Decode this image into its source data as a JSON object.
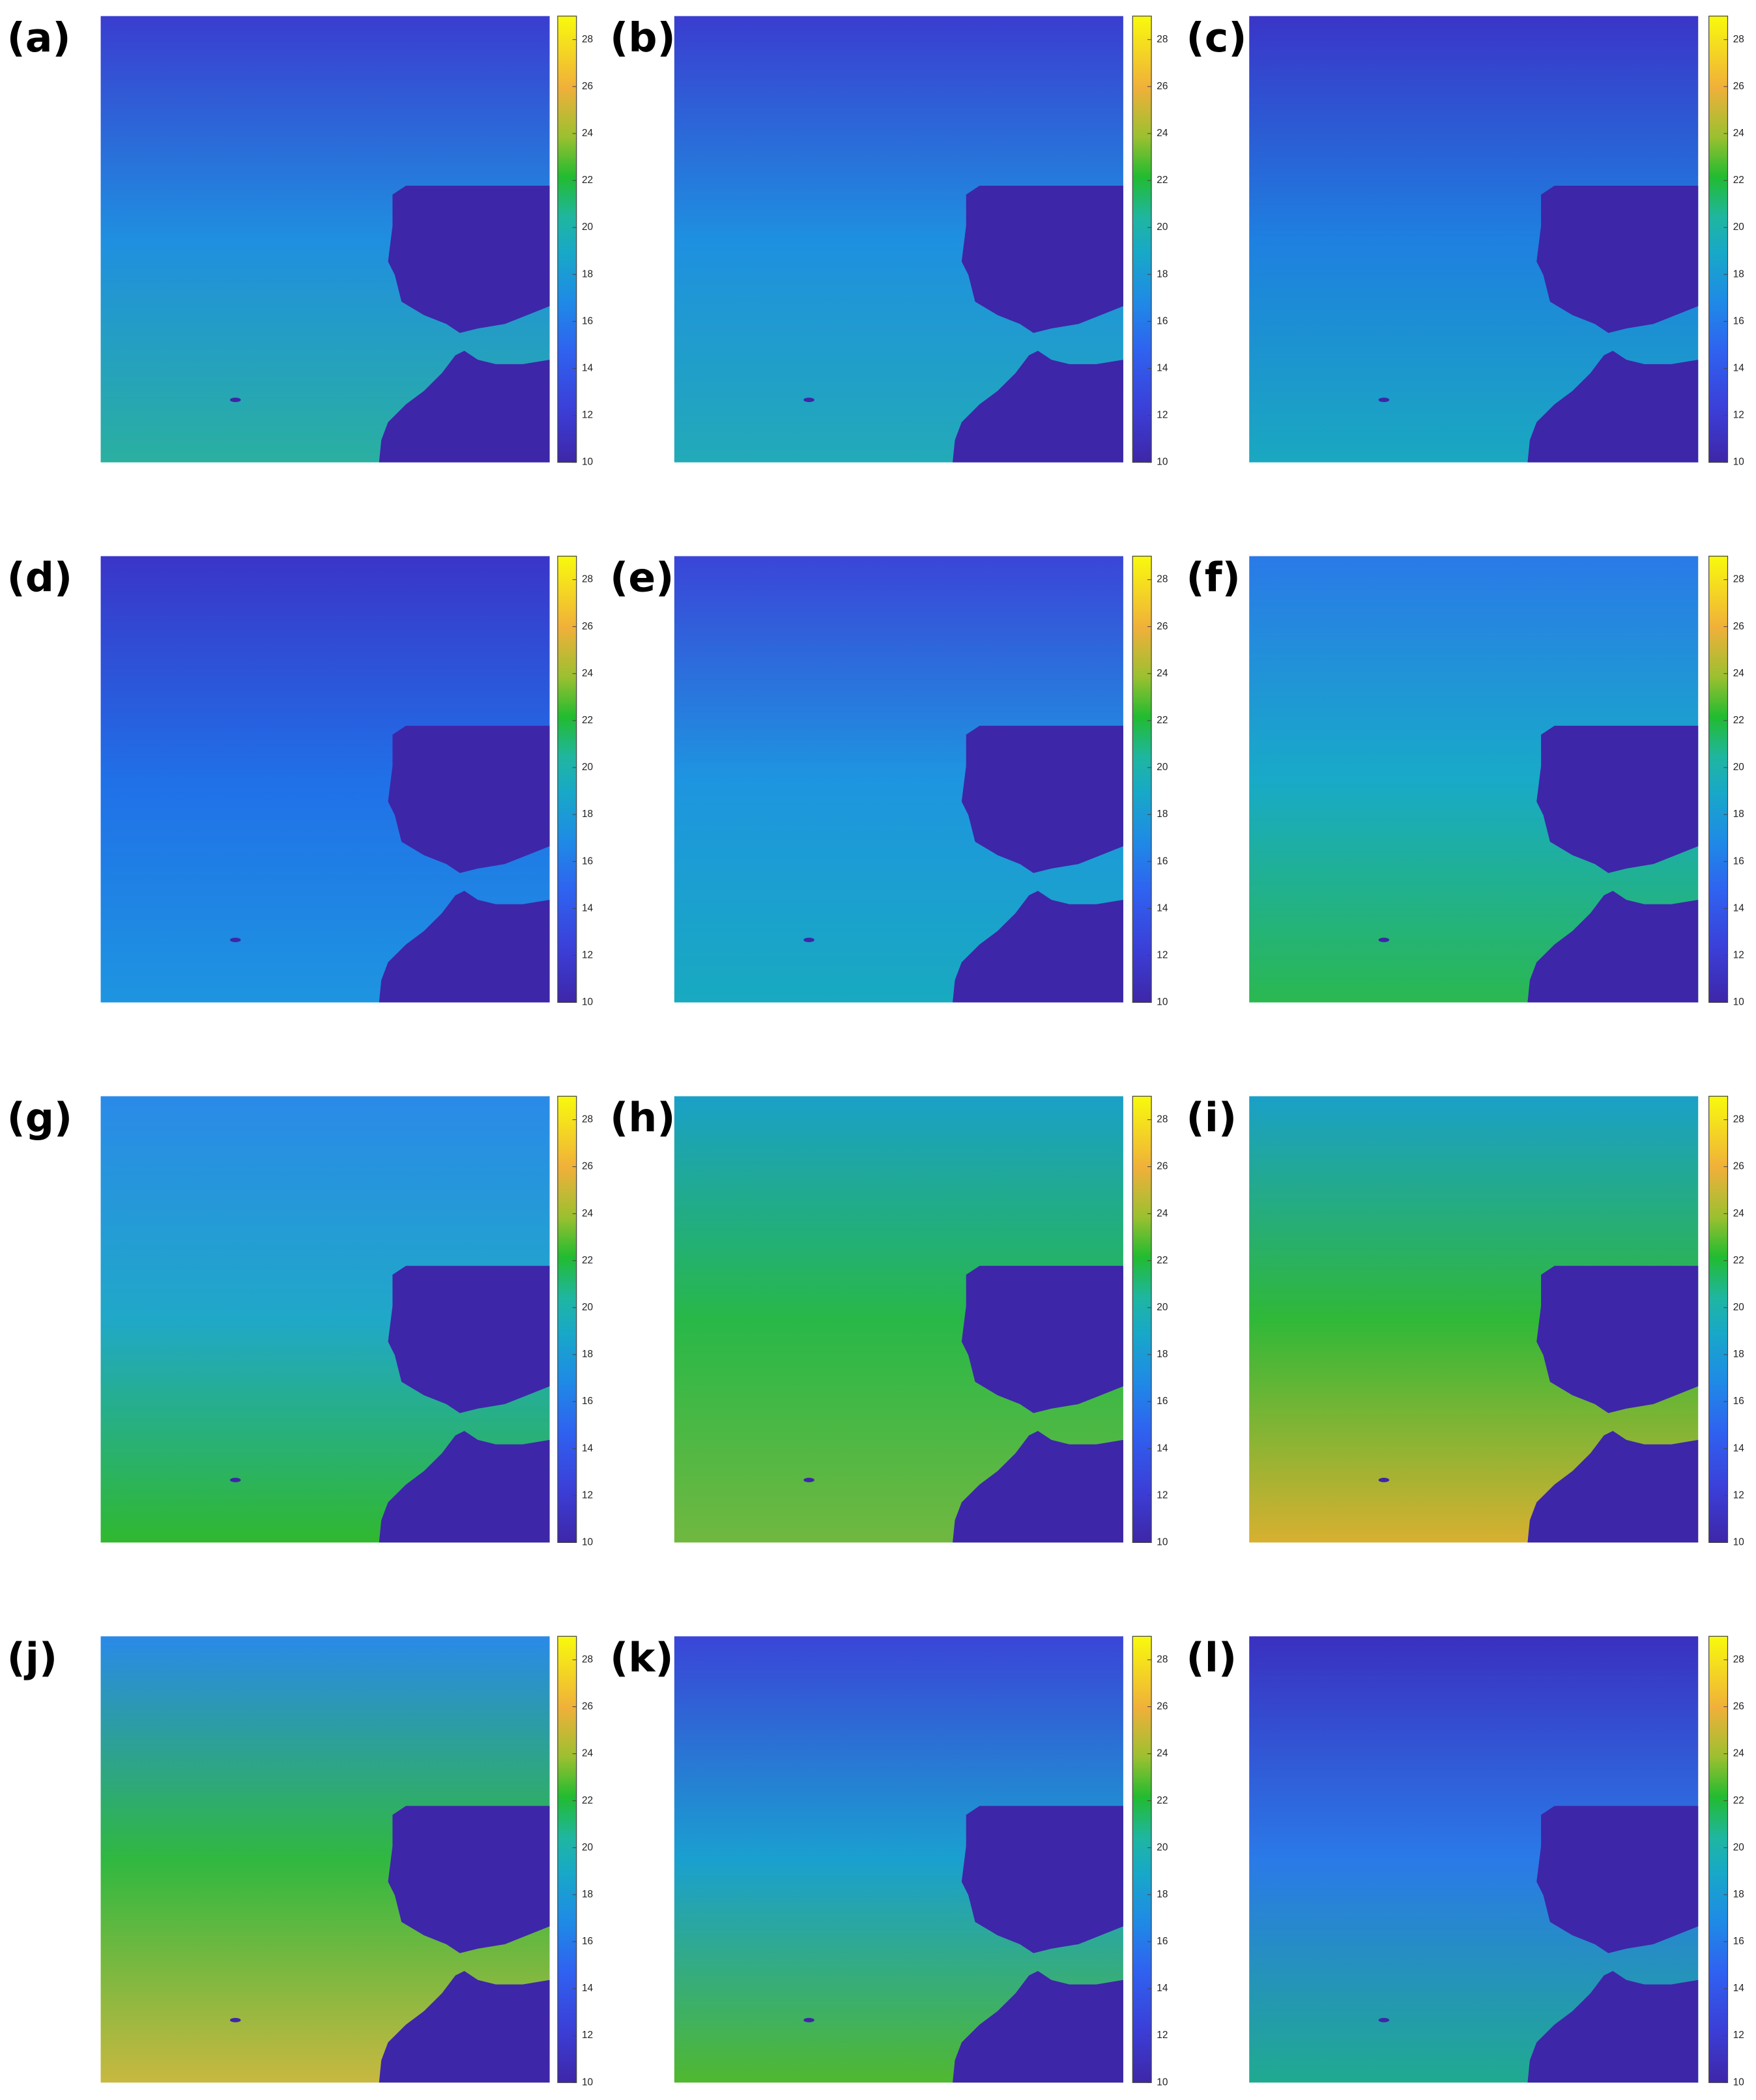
{
  "panels": [
    {
      "label": "(a)"
    },
    {
      "label": "(b)"
    },
    {
      "label": "(c)"
    },
    {
      "label": "(d)"
    },
    {
      "label": "(e)"
    },
    {
      "label": "(f)"
    },
    {
      "label": "(g)"
    },
    {
      "label": "(h)"
    },
    {
      "label": "(i)"
    },
    {
      "label": "(j)"
    },
    {
      "label": "(k)"
    },
    {
      "label": "(l)"
    }
  ],
  "colorbar": {
    "lim": [
      10,
      29
    ],
    "ticks": [
      10,
      12,
      14,
      16,
      18,
      20,
      22,
      24,
      26,
      28
    ]
  }
}
